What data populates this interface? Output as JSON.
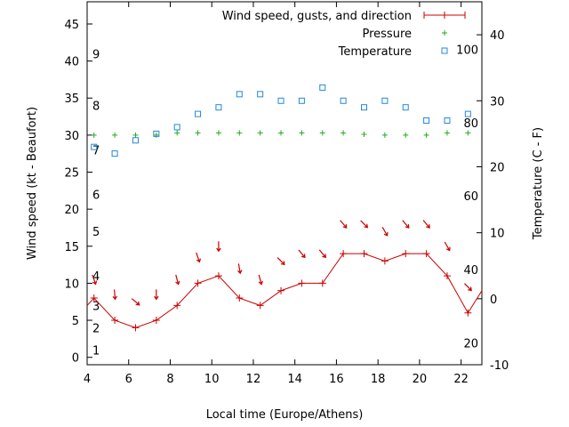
{
  "chart_data": {
    "type": "line",
    "title": "",
    "xlabel": "Local time (Europe/Athens)",
    "ylabel_left": "Wind speed (kt - Beaufort)",
    "ylabel_right": "Temperature (C - F)",
    "xlim": [
      4,
      23
    ],
    "ylim_left": [
      -1,
      48
    ],
    "ylim_right": [
      -10,
      45
    ],
    "x_ticks": [
      "4",
      "6",
      "8",
      "10",
      "12",
      "14",
      "16",
      "18",
      "20",
      "22"
    ],
    "y_left_ticks": [
      "0",
      "5",
      "10",
      "15",
      "20",
      "25",
      "30",
      "35",
      "40",
      "45"
    ],
    "y_right_ticks": [
      "-10",
      "0",
      "10",
      "20",
      "30",
      "40"
    ],
    "beaufort_labels": [
      {
        "text": "1",
        "at": 1
      },
      {
        "text": "2",
        "at": 4
      },
      {
        "text": "3",
        "at": 7
      },
      {
        "text": "4",
        "at": 11
      },
      {
        "text": "5",
        "at": 17
      },
      {
        "text": "6",
        "at": 22
      },
      {
        "text": "7",
        "at": 28
      },
      {
        "text": "8",
        "at": 34
      },
      {
        "text": "9",
        "at": 41
      }
    ],
    "fahrenheit_labels": [
      {
        "text": "20",
        "at": -6.7
      },
      {
        "text": "40",
        "at": 4.4
      },
      {
        "text": "60",
        "at": 15.6
      },
      {
        "text": "80",
        "at": 26.7
      },
      {
        "text": "100",
        "at": 37.8
      }
    ],
    "legend": {
      "position": "top-right",
      "entries": [
        "Wind speed, gusts, and direction",
        "Pressure",
        "Temperature"
      ]
    },
    "colors": {
      "wind": "#cc0000",
      "pressure": "#22aa22",
      "temperature": "#2288dd",
      "axis": "#000000"
    },
    "series": [
      {
        "name": "Wind speed, gusts, and direction",
        "x": [
          4.33,
          5.33,
          6.33,
          7.33,
          8.33,
          9.33,
          10.33,
          11.33,
          12.33,
          13.33,
          14.33,
          15.33,
          16.33,
          17.33,
          18.33,
          19.33,
          20.33,
          21.33,
          22.33
        ],
        "y": [
          8,
          5,
          4,
          5,
          7,
          10,
          11,
          8,
          7,
          9,
          10,
          10,
          14,
          14,
          13,
          14,
          14,
          11,
          6
        ],
        "direction_arrows_y": [
          10.5,
          8.5,
          7.5,
          8.5,
          10.5,
          13.5,
          15,
          12,
          10.5,
          13,
          14,
          14,
          18,
          18,
          17,
          18,
          18,
          15,
          9.5
        ]
      },
      {
        "name": "Pressure",
        "x": [
          4.33,
          5.33,
          6.33,
          7.33,
          8.33,
          9.33,
          10.33,
          11.33,
          12.33,
          13.33,
          14.33,
          15.33,
          16.33,
          17.33,
          18.33,
          19.33,
          20.33,
          21.33,
          22.33
        ],
        "y": [
          30,
          30,
          30,
          30,
          30.3,
          30.3,
          30.3,
          30.3,
          30.3,
          30.3,
          30.3,
          30.3,
          30.3,
          30.1,
          30,
          30,
          30,
          30.3,
          30.3
        ]
      },
      {
        "name": "Temperature",
        "x": [
          4.33,
          5.33,
          6.33,
          7.33,
          8.33,
          9.33,
          10.33,
          11.33,
          12.33,
          13.33,
          14.33,
          15.33,
          16.33,
          17.33,
          18.33,
          19.33,
          20.33,
          21.33,
          22.33
        ],
        "y": [
          23,
          22,
          24,
          25,
          26,
          28,
          29,
          31,
          31,
          30,
          30,
          32,
          30,
          29,
          30,
          29,
          27,
          27,
          28
        ]
      }
    ]
  }
}
